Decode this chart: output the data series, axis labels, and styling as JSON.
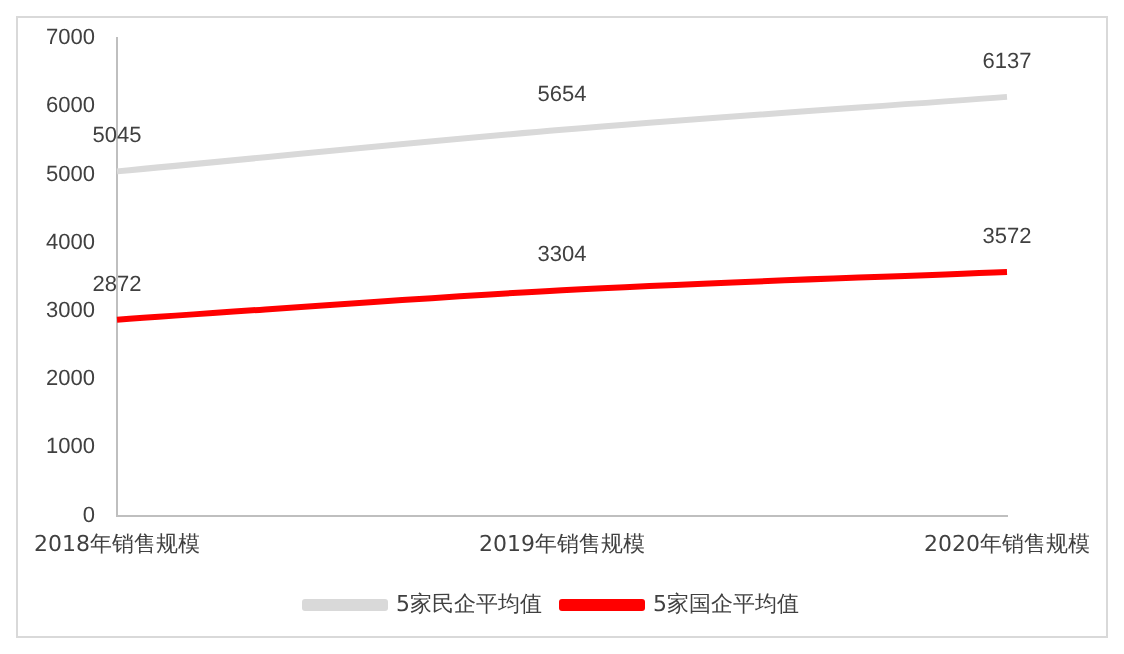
{
  "chart_data": {
    "type": "line",
    "categories": [
      "2018年销售规模",
      "2019年销售规模",
      "2020年销售规模"
    ],
    "series": [
      {
        "name": "5家民企平均值",
        "color": "#d9d9d9",
        "values": [
          5045,
          5654,
          6137
        ]
      },
      {
        "name": "5家国企平均值",
        "color": "#ff0000",
        "values": [
          2872,
          3304,
          3572
        ]
      }
    ],
    "ylim": [
      0,
      7000
    ],
    "yticks": [
      0,
      1000,
      2000,
      3000,
      4000,
      5000,
      6000,
      7000
    ],
    "grid": false,
    "legend": "bottom",
    "data_labels": true,
    "marker": "none",
    "line_style": "solid"
  }
}
